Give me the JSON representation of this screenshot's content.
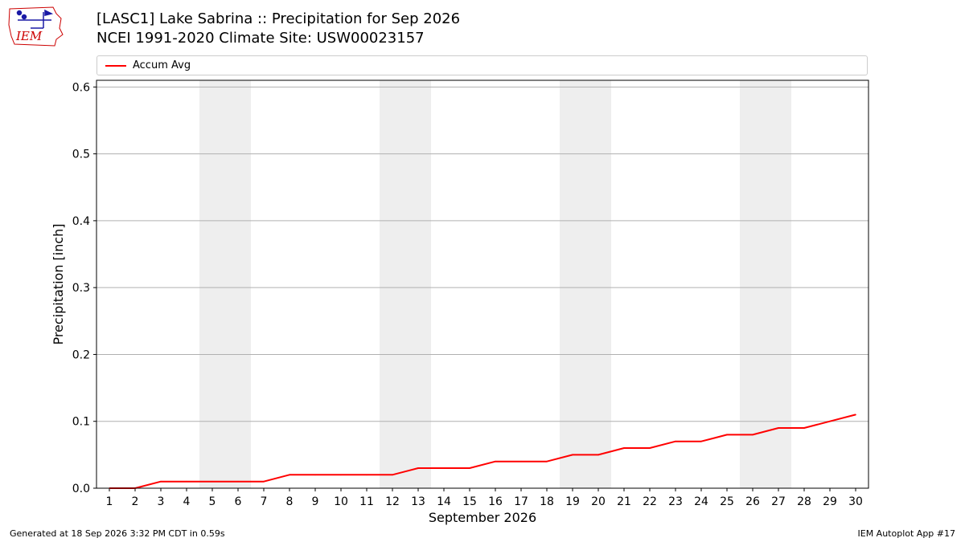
{
  "header": {
    "title_line1": "[LASC1] Lake Sabrina :: Precipitation for Sep 2026",
    "title_line2": "NCEI 1991-2020 Climate Site: USW00023157",
    "logo_text": "IEM"
  },
  "footer": {
    "left": "Generated at 18 Sep 2026 3:32 PM CDT in 0.59s",
    "right": "IEM Autoplot App #17"
  },
  "colors": {
    "series": "#ff0000",
    "weekend_band": "#eeeeee",
    "grid": "#b0b0b0",
    "logo": "#1a1aa6",
    "logo_red": "#cc0000"
  },
  "chart_data": {
    "type": "line",
    "xlabel": "September 2026",
    "ylabel": "Precipitation [inch]",
    "xlim": [
      0.5,
      30.5
    ],
    "ylim": [
      0,
      0.61
    ],
    "yticks": [
      0.0,
      0.1,
      0.2,
      0.3,
      0.4,
      0.5,
      0.6
    ],
    "ytick_labels": [
      "0.0",
      "0.1",
      "0.2",
      "0.3",
      "0.4",
      "0.5",
      "0.6"
    ],
    "x": [
      1,
      2,
      3,
      4,
      5,
      6,
      7,
      8,
      9,
      10,
      11,
      12,
      13,
      14,
      15,
      16,
      17,
      18,
      19,
      20,
      21,
      22,
      23,
      24,
      25,
      26,
      27,
      28,
      29,
      30
    ],
    "xtick_labels": [
      "1",
      "2",
      "3",
      "4",
      "5",
      "6",
      "7",
      "8",
      "9",
      "10",
      "11",
      "12",
      "13",
      "14",
      "15",
      "16",
      "17",
      "18",
      "19",
      "20",
      "21",
      "22",
      "23",
      "24",
      "25",
      "26",
      "27",
      "28",
      "29",
      "30"
    ],
    "weekend_bands": [
      [
        5,
        6
      ],
      [
        12,
        13
      ],
      [
        19,
        20
      ],
      [
        26,
        27
      ]
    ],
    "grid": "horizontal",
    "legend_placement": "top",
    "series": [
      {
        "name": "Accum Avg",
        "color": "#ff0000",
        "values": [
          0,
          0,
          0.01,
          0.01,
          0.01,
          0.01,
          0.01,
          0.02,
          0.02,
          0.02,
          0.02,
          0.02,
          0.03,
          0.03,
          0.03,
          0.04,
          0.04,
          0.04,
          0.05,
          0.05,
          0.06,
          0.06,
          0.07,
          0.07,
          0.08,
          0.08,
          0.09,
          0.09,
          0.1,
          0.11
        ]
      }
    ]
  }
}
